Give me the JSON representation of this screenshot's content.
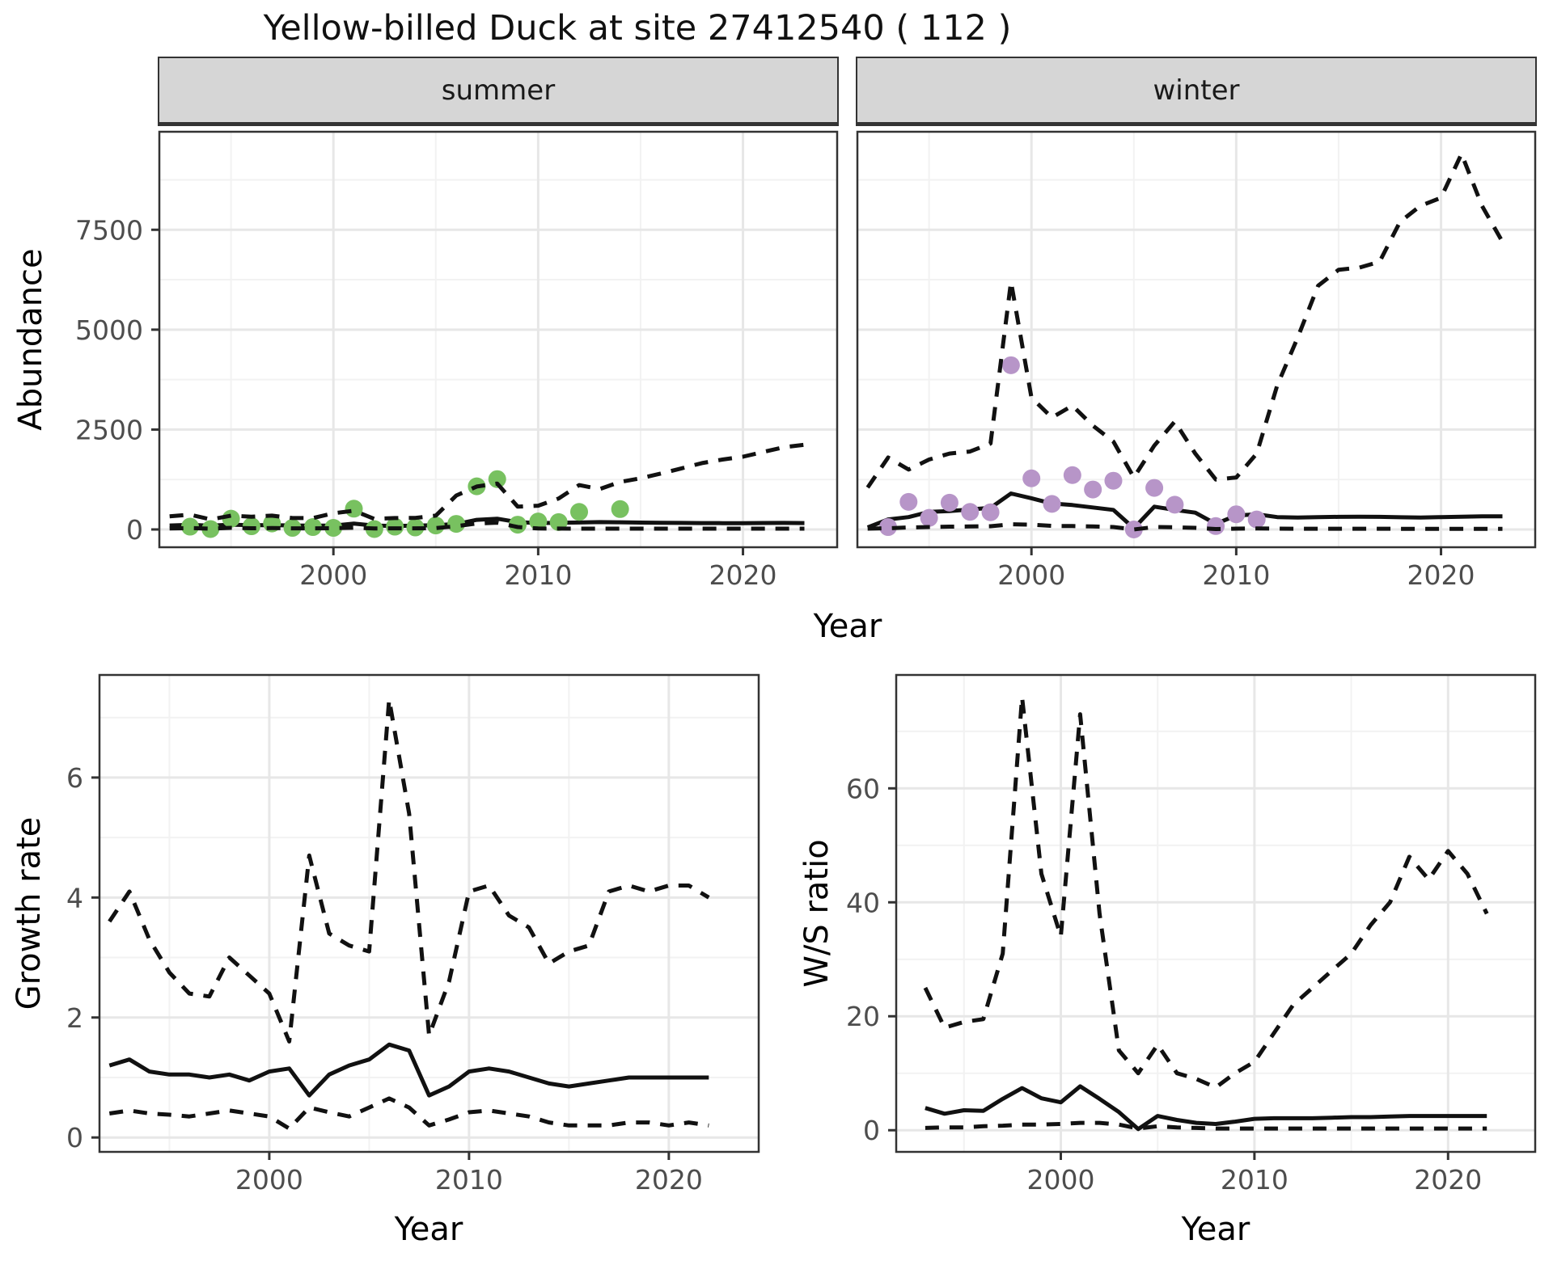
{
  "title": "Yellow-billed Duck at site 27412540 ( 112 )",
  "facets": [
    {
      "label": "summer"
    },
    {
      "label": "winter"
    }
  ],
  "axes": {
    "abundance_label": "Abundance",
    "year_label": "Year",
    "growth_label": "Growth rate",
    "ws_label": "W/S ratio"
  },
  "colors": {
    "summer_points": "#78c160",
    "winter_points": "#b795c8",
    "line": "#111111",
    "strip_bg": "#d6d6d6",
    "grid": "#e7e7e7"
  },
  "chart_data": [
    {
      "id": "summer",
      "type": "line",
      "facet": "summer",
      "xlabel": "Year",
      "ylabel": "Abundance",
      "xlim": [
        1991.5,
        2024.6
      ],
      "ylim": [
        -445,
        9953
      ],
      "xticks": [
        2000,
        2010,
        2020
      ],
      "xtick_labels": [
        "2000",
        "2010",
        "2020"
      ],
      "xminor": [
        1995,
        2005,
        2015
      ],
      "yticks": [
        0,
        2500,
        5000,
        7500
      ],
      "ytick_labels": [
        "0",
        "2500",
        "5000",
        "7500"
      ],
      "yminor": [
        1250,
        3750,
        6250,
        8750
      ],
      "grid": true,
      "x": [
        1992,
        1993,
        1994,
        1995,
        1996,
        1997,
        1998,
        1999,
        2000,
        2001,
        2002,
        2003,
        2004,
        2005,
        2006,
        2007,
        2008,
        2009,
        2010,
        2011,
        2012,
        2013,
        2014,
        2015,
        2016,
        2017,
        2018,
        2019,
        2020,
        2021,
        2022,
        2023
      ],
      "series": [
        {
          "name": "estimate",
          "style": "solid",
          "values": [
            100,
            115,
            95,
            120,
            105,
            110,
            100,
            95,
            95,
            145,
            95,
            90,
            95,
            105,
            135,
            240,
            270,
            185,
            160,
            165,
            175,
            185,
            180,
            172,
            168,
            163,
            160,
            158,
            158,
            162,
            163,
            160
          ]
        },
        {
          "name": "upper-ci",
          "style": "dashed",
          "values": [
            330,
            370,
            250,
            345,
            320,
            345,
            285,
            285,
            405,
            470,
            265,
            285,
            290,
            345,
            850,
            1075,
            1150,
            570,
            595,
            775,
            1110,
            1010,
            1190,
            1280,
            1400,
            1530,
            1660,
            1750,
            1820,
            1940,
            2060,
            2120
          ]
        },
        {
          "name": "lower-ci",
          "style": "dashed",
          "values": [
            25,
            35,
            20,
            40,
            30,
            35,
            28,
            28,
            30,
            45,
            25,
            28,
            28,
            35,
            80,
            150,
            170,
            60,
            25,
            22,
            20,
            20,
            20,
            20,
            20,
            20,
            20,
            20,
            20,
            20,
            20,
            20
          ]
        }
      ],
      "points": {
        "name": "observed-count",
        "color": "#78c160",
        "values": [
          [
            1993,
            70
          ],
          [
            1994,
            10
          ],
          [
            1995,
            270
          ],
          [
            1996,
            80
          ],
          [
            1997,
            150
          ],
          [
            1998,
            40
          ],
          [
            1999,
            60
          ],
          [
            2000,
            40
          ],
          [
            2001,
            520
          ],
          [
            2002,
            10
          ],
          [
            2003,
            70
          ],
          [
            2004,
            50
          ],
          [
            2005,
            100
          ],
          [
            2006,
            140
          ],
          [
            2007,
            1080
          ],
          [
            2008,
            1260
          ],
          [
            2009,
            120
          ],
          [
            2010,
            200
          ],
          [
            2011,
            185
          ],
          [
            2012,
            440
          ],
          [
            2014,
            510
          ]
        ]
      }
    },
    {
      "id": "winter",
      "type": "line",
      "facet": "winter",
      "xlabel": "Year",
      "ylabel": "Abundance",
      "xlim": [
        1991.5,
        2024.6
      ],
      "ylim": [
        -445,
        9953
      ],
      "xticks": [
        2000,
        2010,
        2020
      ],
      "xtick_labels": [
        "2000",
        "2010",
        "2020"
      ],
      "xminor": [
        1995,
        2005,
        2015
      ],
      "yticks": [
        0,
        2500,
        5000,
        7500
      ],
      "ytick_labels": [],
      "yminor": [
        1250,
        3750,
        6250,
        8750
      ],
      "grid": true,
      "x": [
        1992,
        1993,
        1994,
        1995,
        1996,
        1997,
        1998,
        1999,
        2000,
        2001,
        2002,
        2003,
        2004,
        2005,
        2006,
        2007,
        2008,
        2009,
        2010,
        2011,
        2012,
        2013,
        2014,
        2015,
        2016,
        2017,
        2018,
        2019,
        2020,
        2021,
        2022,
        2023
      ],
      "series": [
        {
          "name": "estimate",
          "style": "solid",
          "values": [
            50,
            250,
            310,
            440,
            460,
            500,
            540,
            900,
            780,
            650,
            610,
            550,
            490,
            30,
            570,
            490,
            420,
            140,
            350,
            380,
            310,
            300,
            310,
            315,
            320,
            315,
            305,
            300,
            310,
            320,
            330,
            330
          ]
        },
        {
          "name": "upper-ci",
          "style": "dashed",
          "values": [
            1050,
            1800,
            1500,
            1750,
            1900,
            1950,
            2150,
            6200,
            3300,
            2800,
            3100,
            2600,
            2200,
            1300,
            2100,
            2700,
            1900,
            1250,
            1300,
            1900,
            3600,
            4800,
            6100,
            6500,
            6550,
            6700,
            7700,
            8100,
            8300,
            9400,
            8100,
            7200
          ]
        },
        {
          "name": "lower-ci",
          "style": "dashed",
          "values": [
            20,
            30,
            50,
            60,
            70,
            75,
            80,
            130,
            120,
            90,
            85,
            75,
            60,
            0,
            60,
            55,
            40,
            10,
            20,
            25,
            20,
            18,
            18,
            18,
            18,
            18,
            16,
            15,
            15,
            15,
            15,
            15
          ]
        }
      ],
      "points": {
        "name": "observed-count",
        "color": "#b795c8",
        "values": [
          [
            1993,
            60
          ],
          [
            1994,
            690
          ],
          [
            1995,
            290
          ],
          [
            1996,
            670
          ],
          [
            1997,
            440
          ],
          [
            1998,
            430
          ],
          [
            1999,
            4110
          ],
          [
            2000,
            1280
          ],
          [
            2001,
            640
          ],
          [
            2002,
            1360
          ],
          [
            2003,
            1000
          ],
          [
            2004,
            1220
          ],
          [
            2005,
            0
          ],
          [
            2006,
            1040
          ],
          [
            2007,
            620
          ],
          [
            2009,
            85
          ],
          [
            2010,
            380
          ],
          [
            2011,
            250
          ]
        ]
      }
    },
    {
      "id": "growth",
      "type": "line",
      "xlabel": "Year",
      "ylabel": "Growth rate",
      "xlim": [
        1991.5,
        2024.5
      ],
      "ylim": [
        -0.24,
        7.71
      ],
      "xticks": [
        2000,
        2010,
        2020
      ],
      "xtick_labels": [
        "2000",
        "2010",
        "2020"
      ],
      "xminor": [
        1995,
        2005,
        2015
      ],
      "yticks": [
        0,
        2,
        4,
        6
      ],
      "ytick_labels": [
        "0",
        "2",
        "4",
        "6"
      ],
      "yminor": [
        1,
        3,
        5,
        7
      ],
      "grid": true,
      "x": [
        1992,
        1993,
        1994,
        1995,
        1996,
        1997,
        1998,
        1999,
        2000,
        2001,
        2002,
        2003,
        2004,
        2005,
        2006,
        2007,
        2008,
        2009,
        2010,
        2011,
        2012,
        2013,
        2014,
        2015,
        2016,
        2017,
        2018,
        2019,
        2020,
        2021,
        2022
      ],
      "series": [
        {
          "name": "estimate",
          "style": "solid",
          "values": [
            1.2,
            1.3,
            1.1,
            1.05,
            1.05,
            1.0,
            1.05,
            0.95,
            1.1,
            1.15,
            0.7,
            1.05,
            1.2,
            1.3,
            1.55,
            1.45,
            0.7,
            0.85,
            1.1,
            1.15,
            1.1,
            1.0,
            0.9,
            0.85,
            0.9,
            0.95,
            1.0,
            1.0,
            1.0,
            1.0,
            1.0
          ]
        },
        {
          "name": "upper-ci",
          "style": "dashed",
          "values": [
            3.6,
            4.1,
            3.3,
            2.75,
            2.4,
            2.35,
            3.0,
            2.7,
            2.4,
            1.6,
            4.7,
            3.4,
            3.2,
            3.1,
            7.3,
            5.4,
            1.7,
            2.6,
            4.1,
            4.2,
            3.7,
            3.5,
            2.9,
            3.1,
            3.2,
            4.1,
            4.2,
            4.1,
            4.2,
            4.2,
            4.0
          ]
        },
        {
          "name": "lower-ci",
          "style": "dashed",
          "values": [
            0.4,
            0.45,
            0.4,
            0.38,
            0.35,
            0.4,
            0.45,
            0.4,
            0.35,
            0.15,
            0.5,
            0.42,
            0.35,
            0.5,
            0.65,
            0.5,
            0.2,
            0.3,
            0.42,
            0.45,
            0.4,
            0.35,
            0.25,
            0.2,
            0.2,
            0.2,
            0.25,
            0.25,
            0.2,
            0.25,
            0.2
          ]
        }
      ]
    },
    {
      "id": "ws",
      "type": "line",
      "xlabel": "Year",
      "ylabel": "W/S ratio",
      "xlim": [
        1991.5,
        2024.5
      ],
      "ylim": [
        -3.8,
        79.9
      ],
      "xticks": [
        2000,
        2010,
        2020
      ],
      "xtick_labels": [
        "2000",
        "2010",
        "2020"
      ],
      "xminor": [
        1995,
        2005,
        2015
      ],
      "yticks": [
        0,
        20,
        40,
        60
      ],
      "ytick_labels": [
        "0",
        "20",
        "40",
        "60"
      ],
      "yminor": [
        10,
        30,
        50,
        70
      ],
      "grid": true,
      "x": [
        1993,
        1994,
        1995,
        1996,
        1997,
        1998,
        1999,
        2000,
        2001,
        2002,
        2003,
        2004,
        2005,
        2006,
        2007,
        2008,
        2009,
        2010,
        2011,
        2012,
        2013,
        2014,
        2015,
        2016,
        2017,
        2018,
        2019,
        2020,
        2021,
        2022
      ],
      "series": [
        {
          "name": "estimate",
          "style": "solid",
          "values": [
            3.9,
            2.9,
            3.5,
            3.4,
            5.5,
            7.4,
            5.6,
            4.9,
            7.7,
            5.5,
            3.2,
            0.2,
            2.5,
            1.8,
            1.3,
            1.1,
            1.5,
            2.0,
            2.1,
            2.1,
            2.1,
            2.2,
            2.3,
            2.3,
            2.4,
            2.5,
            2.5,
            2.5,
            2.5,
            2.5
          ]
        },
        {
          "name": "upper-ci",
          "style": "dashed",
          "values": [
            25,
            18,
            19,
            19.5,
            31,
            76,
            45,
            34,
            73,
            38,
            14,
            10,
            15,
            10,
            9,
            7.5,
            10,
            12,
            17,
            22,
            25,
            28,
            31,
            36,
            40,
            48,
            44,
            49,
            45,
            38
          ]
        },
        {
          "name": "lower-ci",
          "style": "dashed",
          "values": [
            0.4,
            0.5,
            0.5,
            0.7,
            0.8,
            1.0,
            1.0,
            1.1,
            1.3,
            1.3,
            1.0,
            0.3,
            0.7,
            0.5,
            0.4,
            0.3,
            0.3,
            0.3,
            0.3,
            0.3,
            0.3,
            0.3,
            0.3,
            0.3,
            0.3,
            0.3,
            0.3,
            0.3,
            0.3,
            0.3
          ]
        }
      ]
    }
  ]
}
